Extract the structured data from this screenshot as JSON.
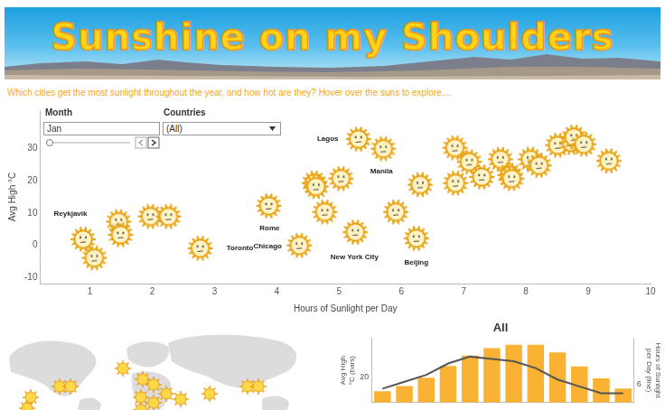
{
  "header": {
    "title": "Sunshine on my Shoulders",
    "subtitle": "Which cities get the most sunlight throughout the year, and how hot are they? Hover over the suns to explore...."
  },
  "filters": {
    "month_label": "Month",
    "month": "Jan",
    "countries_label": "Countries",
    "countries": "(All)"
  },
  "chart_data": [
    {
      "type": "scatter",
      "x_label": "Hours of Sunlight per Day",
      "y_label": "Avg High °C",
      "x": [
        0.89,
        1.07,
        1.46,
        1.49,
        1.97,
        2.26,
        2.77,
        3.87,
        4.36,
        4.6,
        4.63,
        5.03,
        4.77,
        5.26,
        5.31,
        5.71,
        5.91,
        6.24,
        6.3,
        6.86,
        6.87,
        7.09,
        7.29,
        7.59,
        7.74,
        7.77,
        8.07,
        8.21,
        8.51,
        8.73,
        8.77,
        8.93,
        9.33
      ],
      "values": [
        1.8,
        -4.0,
        7.3,
        3.2,
        8.9,
        8.9,
        -1.0,
        12.2,
        -0.1,
        19.3,
        18.2,
        20.7,
        10.3,
        4.0,
        33.0,
        30.0,
        10.3,
        2.1,
        18.8,
        30.3,
        19.3,
        25.9,
        21.2,
        26.7,
        21.8,
        20.7,
        26.7,
        24.8,
        31.1,
        31.9,
        33.6,
        31.4,
        26.2
      ],
      "labels": [
        "Reykjavik",
        null,
        null,
        null,
        null,
        null,
        "Toronto",
        "Rome",
        "Chicago",
        null,
        null,
        null,
        null,
        "New York City",
        "Lagos",
        "Manila",
        null,
        "Beijing",
        null,
        null,
        null,
        null,
        null,
        null,
        null,
        null,
        null,
        null,
        null,
        null,
        null,
        null,
        null
      ],
      "color": "#fcc21b",
      "marker": "sun",
      "xlim": [
        0.2,
        10
      ],
      "xticks": [
        1,
        2,
        3,
        4,
        5,
        6,
        7,
        8,
        9,
        10
      ],
      "ylim": [
        -12,
        42
      ],
      "yticks": [
        -10,
        0,
        10,
        20,
        30
      ],
      "grid": false
    },
    {
      "type": "bar",
      "title": "All",
      "categories": [
        null,
        null,
        null,
        null,
        null,
        null,
        null,
        null,
        null,
        null,
        null,
        null
      ],
      "series": [
        {
          "type": "bar",
          "color": "#f9b233",
          "values": [
            15.5,
            17.1,
            19.7,
            23.4,
            26.6,
            28.9,
            30.0,
            30.0,
            27.6,
            23.2,
            19.5,
            16.3
          ]
        },
        {
          "type": "line",
          "color": "#555555",
          "axis": "y2",
          "values": [
            5.8,
            6.1,
            6.4,
            6.9,
            7.2,
            7.1,
            7.0,
            6.7,
            6.2,
            5.9,
            5.6,
            5.6
          ]
        }
      ],
      "y_label": "Avg High °C (bars)",
      "y2_label": "Hours of Sunlight per Day (line)",
      "ylim": [
        12,
        32
      ],
      "yticks": [
        20
      ],
      "y2lim": [
        5.2,
        8
      ],
      "y2ticks": [
        6
      ],
      "tick_labels": "y",
      "grid": false
    }
  ]
}
